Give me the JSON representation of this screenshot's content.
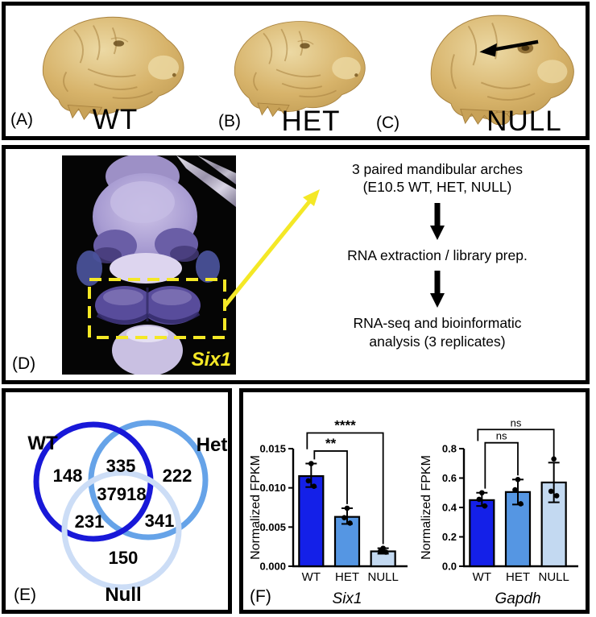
{
  "colors": {
    "highlight_yellow": "#f2e independent",
    "yellow": "#f4e826",
    "head_tan_light": "#ecd9a4",
    "head_tan": "#d7b36a",
    "head_tan_dark": "#a8823f"
  },
  "panel_top": {
    "items": [
      {
        "label": "(A)",
        "caption": "WT"
      },
      {
        "label": "(B)",
        "caption": "HET"
      },
      {
        "label": "(C)",
        "caption": "NULL"
      }
    ]
  },
  "panel_d": {
    "label": "(D)",
    "gene_label": "Six1",
    "flow_steps": [
      "3 paired mandibular arches\n(E10.5 WT, HET, NULL)",
      "RNA extraction / library prep.",
      "RNA-seq and bioinformatic\nanalysis (3 replicates)"
    ]
  },
  "panel_e": {
    "label": "(E)",
    "venn": {
      "type": "venn3",
      "sets": [
        {
          "name": "WT",
          "color": "#1818d8",
          "unique": "148"
        },
        {
          "name": "Het",
          "color": "#66a3e8",
          "unique": "222"
        },
        {
          "name": "Null",
          "color": "#ccddf6",
          "unique": "150"
        }
      ],
      "overlaps": {
        "wt_het": "335",
        "wt_null": "231",
        "het_null": "341",
        "all": "37918"
      }
    }
  },
  "panel_f": {
    "label": "(F)"
  },
  "chart_data": [
    {
      "type": "bar",
      "title": "Six1",
      "ylabel": "Normalized FPKM",
      "categories": [
        "WT",
        "HET",
        "NULL"
      ],
      "values": [
        0.0115,
        0.0063,
        0.0019
      ],
      "error_low": [
        0.0101,
        0.0054,
        0.0016
      ],
      "error_high": [
        0.0131,
        0.0074,
        0.0023
      ],
      "points": [
        [
          0.0131,
          0.0109,
          0.0102
        ],
        [
          0.0074,
          0.0062,
          0.0055
        ],
        [
          0.0023,
          0.0019,
          0.0018
        ]
      ],
      "ylim": [
        0,
        0.015
      ],
      "yticks": [
        0,
        0.005,
        0.01,
        0.015
      ],
      "ytick_labels": [
        "0.000",
        "0.005",
        "0.010",
        "0.015"
      ],
      "bar_colors": [
        "#1420e8",
        "#5596e3",
        "#c3d9f1"
      ],
      "grid": false,
      "significance": [
        {
          "from": 0,
          "to": 1,
          "label": "**",
          "y": 0.0147
        },
        {
          "from": 0,
          "to": 2,
          "label": "****",
          "y": 0.017
        }
      ]
    },
    {
      "type": "bar",
      "title": "Gapdh",
      "ylabel": "Normalized FPKM",
      "categories": [
        "WT",
        "HET",
        "NULL"
      ],
      "values": [
        0.45,
        0.505,
        0.57
      ],
      "error_low": [
        0.41,
        0.42,
        0.435
      ],
      "error_high": [
        0.5,
        0.59,
        0.705
      ],
      "points": [
        [
          0.5,
          0.455,
          0.41
        ],
        [
          0.59,
          0.52,
          0.425
        ],
        [
          0.73,
          0.51,
          0.48
        ]
      ],
      "ylim": [
        0,
        0.8
      ],
      "yticks": [
        0,
        0.2,
        0.4,
        0.6,
        0.8
      ],
      "ytick_labels": [
        "0.0",
        "0.2",
        "0.4",
        "0.6",
        "0.8"
      ],
      "bar_colors": [
        "#1420e8",
        "#5596e3",
        "#c3d9f1"
      ],
      "grid": false,
      "significance": [
        {
          "from": 0,
          "to": 1,
          "label": "ns",
          "y": 0.84
        },
        {
          "from": 0,
          "to": 2,
          "label": "ns",
          "y": 0.93
        }
      ]
    }
  ]
}
